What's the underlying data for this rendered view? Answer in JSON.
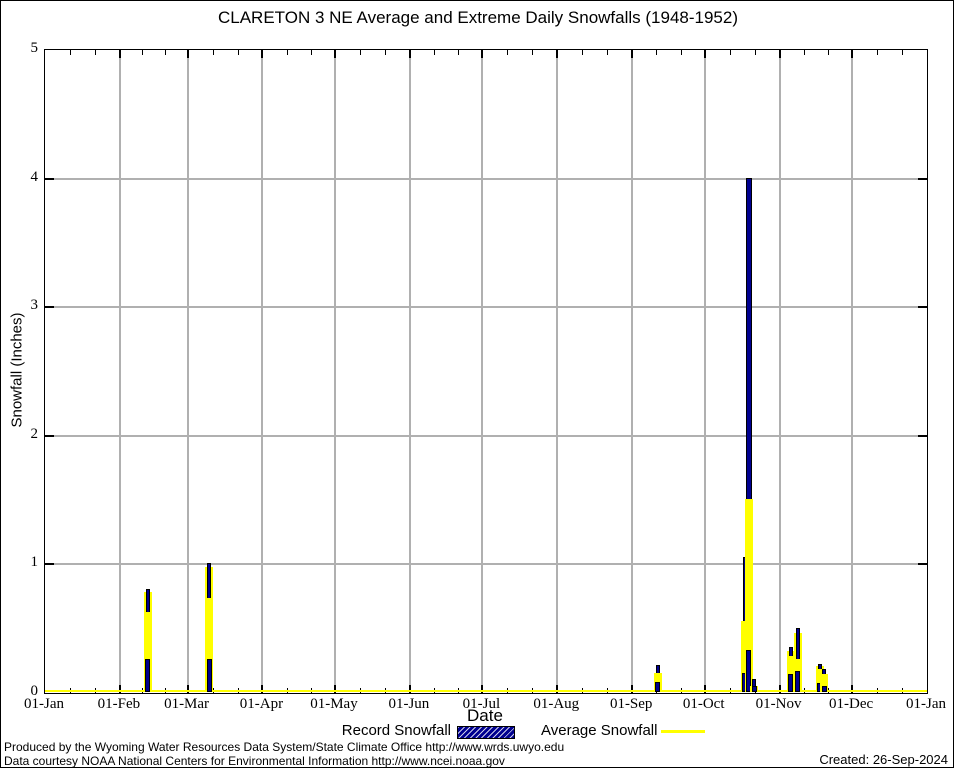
{
  "title": "CLARETON 3 NE Average and Extreme Daily Snowfalls (1948-1952)",
  "axes": {
    "y_label": "Snowfall (Inches)",
    "x_label": "Date",
    "y_ticks": [
      0,
      1,
      2,
      3,
      4,
      5
    ],
    "y_max": 5,
    "x_tick_labels": [
      "01-Jan",
      "01-Feb",
      "01-Mar",
      "01-Apr",
      "01-May",
      "01-Jun",
      "01-Jul",
      "01-Aug",
      "01-Sep",
      "01-Oct",
      "01-Nov",
      "01-Dec",
      "01-Jan"
    ],
    "month_start_days": [
      0,
      31,
      59,
      90,
      120,
      151,
      181,
      212,
      243,
      273,
      304,
      334,
      365
    ],
    "days_in_year": 365,
    "grid": "on"
  },
  "legend": [
    {
      "label": "Record Snowfall",
      "swatch": "navy-hatched-box"
    },
    {
      "label": "Average Snowfall",
      "swatch": "yellow-line"
    }
  ],
  "footer": {
    "line1": "Produced by the Wyoming Water Resources Data System/State Climate Office http://www.wrds.uwyo.edu",
    "line2": "Data courtesy NOAA National Centers for Environmental Information http://www.ncei.noaa.gov",
    "created": "Created: 26-Sep-2024"
  },
  "colors": {
    "record_navy": "#000090",
    "average_yellow": "#ffff00",
    "grid_gray": "#b0b0b0",
    "axis_black": "#000000",
    "background": "#ffffff"
  },
  "chart_data": {
    "type": "bar",
    "title": "CLARETON 3 NE Average and Extreme Daily Snowfalls (1948-1952)",
    "xlabel": "Date",
    "ylabel": "Snowfall (Inches)",
    "ylim": [
      0,
      5
    ],
    "x_range": [
      "01-Jan",
      "01-Jan"
    ],
    "legend_position": "bottom-center",
    "series": [
      {
        "name": "Record Snowfall",
        "color": "#000090",
        "style": "hatched-box"
      },
      {
        "name": "Average Snowfall",
        "color": "#ffff00",
        "style": "thick-impulse"
      }
    ],
    "baseline_average": 0,
    "events": [
      {
        "date": "12-Feb",
        "day": 42.5,
        "record": 0.8,
        "average": 0.62,
        "average_peak": 0.78,
        "record_inner": 0.26
      },
      {
        "date": "10-Mar",
        "day": 68.0,
        "record": 1.0,
        "average": 0.73,
        "average_peak": 0.97,
        "record_inner": 0.26
      },
      {
        "date": "11-Sep",
        "day": 253.5,
        "record": 0.21,
        "average": 0.15,
        "average_peak": 0,
        "record_inner": 0.08
      },
      {
        "date": "17-Oct",
        "day": 289.5,
        "record": 1.05,
        "average": 0.55,
        "average_peak": 0,
        "record_inner": 0.15
      },
      {
        "date": "19-Oct",
        "day": 291.3,
        "record": 4.0,
        "average": 1.5,
        "average_peak": 0,
        "record_inner": 0.33
      },
      {
        "date": "21-Oct",
        "day": 293.5,
        "record": 0.1,
        "average": 0.05,
        "average_peak": 0,
        "record_inner": 0.05
      },
      {
        "date": "05-Nov",
        "day": 308.7,
        "record": 0.35,
        "average": 0.28,
        "average_peak": 0.32,
        "record_inner": 0.14
      },
      {
        "date": "08-Nov",
        "day": 311.6,
        "record": 0.5,
        "average": 0.26,
        "average_peak": 0.46,
        "record_inner": 0.16
      },
      {
        "date": "17-Nov",
        "day": 320.7,
        "record": 0.22,
        "average": 0.18,
        "average_peak": 0.2,
        "record_inner": 0.07
      },
      {
        "date": "18-Nov",
        "day": 322.4,
        "record": 0.18,
        "average": 0.14,
        "average_peak": 0,
        "record_inner": 0.05
      }
    ]
  }
}
